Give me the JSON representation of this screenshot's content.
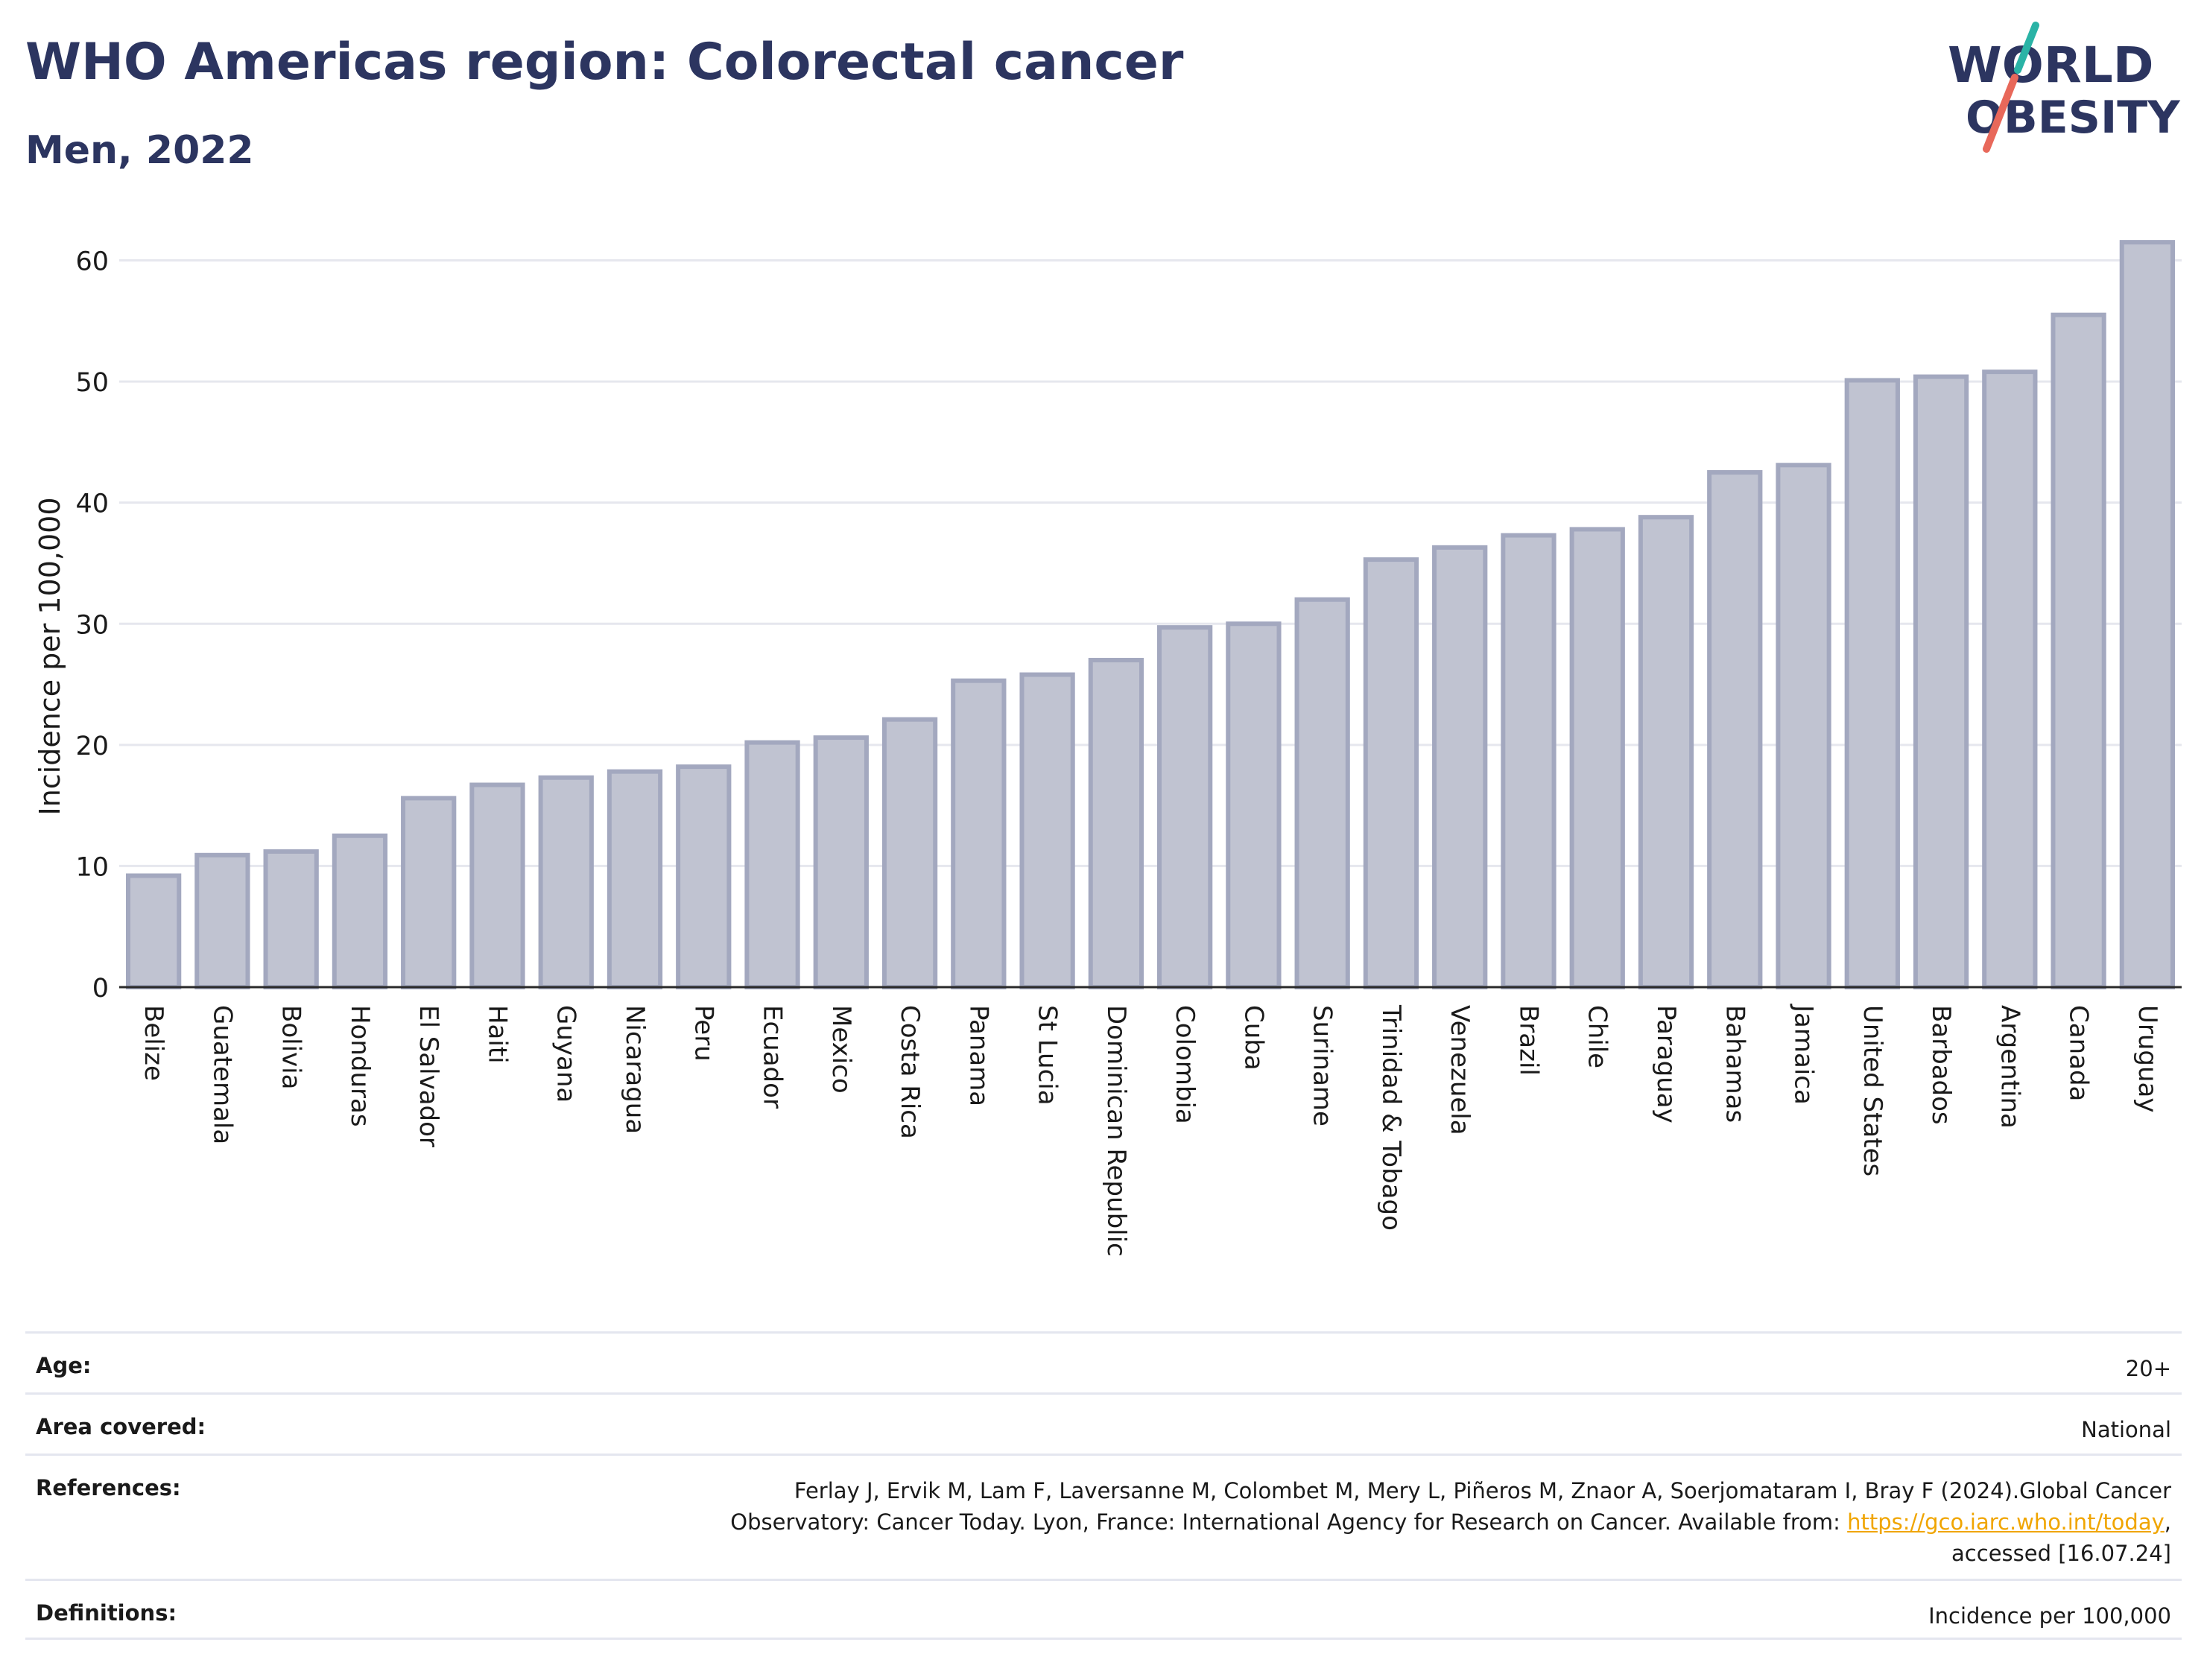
{
  "header": {
    "title": "WHO Americas region: Colorectal cancer",
    "subtitle": "Men, 2022"
  },
  "logo": {
    "line1": "WORLD",
    "line2": "OBESITY",
    "slash_color_top": "#2ab3a6",
    "slash_color_bottom": "#e8685a",
    "text_color": "#2c3560"
  },
  "chart_data": {
    "type": "bar",
    "title": "WHO Americas region: Colorectal cancer",
    "subtitle": "Men, 2022",
    "xlabel": "",
    "ylabel": "Incidence per 100,000",
    "ylim": [
      0,
      62
    ],
    "yticks": [
      0,
      10,
      20,
      30,
      40,
      50,
      60
    ],
    "grid": true,
    "bar_fill": "#c0c3d1",
    "bar_stroke": "#a3a8bf",
    "categories": [
      "Belize",
      "Guatemala",
      "Bolivia",
      "Honduras",
      "El Salvador",
      "Haiti",
      "Guyana",
      "Nicaragua",
      "Peru",
      "Ecuador",
      "Mexico",
      "Costa Rica",
      "Panama",
      "St Lucia",
      "Dominican Republic",
      "Colombia",
      "Cuba",
      "Suriname",
      "Trinidad & Tobago",
      "Venezuela",
      "Brazil",
      "Chile",
      "Paraguay",
      "Bahamas",
      "Jamaica",
      "United States",
      "Barbados",
      "Argentina",
      "Canada",
      "Uruguay"
    ],
    "values": [
      9.2,
      10.9,
      11.2,
      12.5,
      15.6,
      16.7,
      17.3,
      17.8,
      18.2,
      20.2,
      20.6,
      22.1,
      25.3,
      25.8,
      27.0,
      29.7,
      30.0,
      32.0,
      35.3,
      36.3,
      37.3,
      37.8,
      38.8,
      42.5,
      43.1,
      50.1,
      50.4,
      50.8,
      55.5,
      61.5
    ]
  },
  "meta": {
    "age_label": "Age:",
    "age_value": "20+",
    "area_label": "Area covered:",
    "area_value": "National",
    "references_label": "References:",
    "references_line1": "Ferlay J, Ervik M, Lam F, Laversanne M, Colombet M, Mery L, Piñeros M, Znaor A, Soerjomataram I, Bray F (2024).Global Cancer",
    "references_line2": "Observatory: Cancer Today. Lyon, France: International Agency for Research on Cancer. Available from: ",
    "references_link": "https://gco.iarc.who.int/today",
    "references_line2_end": ",",
    "references_line3": "accessed [16.07.24]",
    "definitions_label": "Definitions:",
    "definitions_value": "Incidence per 100,000"
  }
}
